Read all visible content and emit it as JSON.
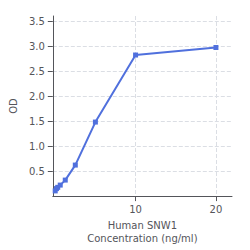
{
  "chart_data": {
    "type": "line",
    "x": [
      0,
      0.156,
      0.313,
      0.625,
      1.25,
      2.5,
      5,
      10,
      20
    ],
    "values": [
      0.104,
      0.15,
      0.175,
      0.22,
      0.32,
      0.62,
      1.48,
      2.82,
      2.97
    ],
    "marker": "square",
    "xlabel": "Human SNW1\nConcentration (ng/ml)",
    "ylabel": "OD",
    "xlim": [
      -0.3,
      22
    ],
    "ylim": [
      0,
      3.6
    ],
    "xticks": [
      10,
      20
    ],
    "yticks": [
      0.5,
      {
        "value": 1.0,
        "label": "1.0"
      },
      1.5,
      {
        "value": 2.0,
        "label": "2.0"
      },
      2.5,
      {
        "value": 3.0,
        "label": "3.0"
      },
      3.5
    ],
    "grid": true
  }
}
